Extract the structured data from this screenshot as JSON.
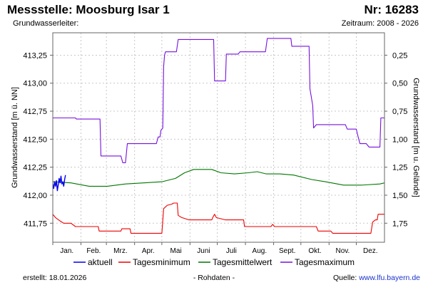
{
  "header": {
    "title": "Messstelle: Moosburg Isar 1",
    "nr": "Nr: 16283",
    "aquifer_label": "Grundwasserleiter:",
    "period": "Zeitraum: 2008 - 2026"
  },
  "footer": {
    "created": "erstellt:  18.01.2026",
    "rawdata": "- Rohdaten -",
    "source_label": "Quelle: ",
    "source_link": "www.lfu.bayern.de"
  },
  "colors": {
    "aktuell": "#0000ee",
    "min": "#ee0000",
    "mean": "#007700",
    "max": "#7711dd",
    "grid": "#c8c8c8"
  },
  "chart_data": {
    "type": "line",
    "ylabel_left": "Grundwasserstand [m ü. NN]",
    "ylabel_right": "Grundwasserstand [m u. Gelände]",
    "ylim": [
      411.58,
      413.45
    ],
    "yticks_left": [
      {
        "value": 411.75,
        "label": "411,75"
      },
      {
        "value": 412.0,
        "label": "412,00"
      },
      {
        "value": 412.25,
        "label": "412,25"
      },
      {
        "value": 412.5,
        "label": "412,50"
      },
      {
        "value": 412.75,
        "label": "412,75"
      },
      {
        "value": 413.0,
        "label": "413,00"
      },
      {
        "value": 413.25,
        "label": "413,25"
      }
    ],
    "yticks_right": [
      {
        "value": 413.25,
        "label": "0,25"
      },
      {
        "value": 413.0,
        "label": "0,50"
      },
      {
        "value": 412.75,
        "label": "0,75"
      },
      {
        "value": 412.5,
        "label": "1,00"
      },
      {
        "value": 412.25,
        "label": "1,25"
      },
      {
        "value": 412.0,
        "label": "1,50"
      },
      {
        "value": 411.75,
        "label": "1,75"
      }
    ],
    "xlim": [
      0,
      365
    ],
    "months": [
      {
        "label": "Jan.",
        "start": 0
      },
      {
        "label": "Feb.",
        "start": 31
      },
      {
        "label": "Mrz.",
        "start": 59
      },
      {
        "label": "Apr.",
        "start": 90
      },
      {
        "label": "Mai",
        "start": 120
      },
      {
        "label": "Juni",
        "start": 151
      },
      {
        "label": "Juli",
        "start": 181
      },
      {
        "label": "Aug.",
        "start": 212
      },
      {
        "label": "Sept.",
        "start": 243
      },
      {
        "label": "Okt.",
        "start": 273
      },
      {
        "label": "Nov.",
        "start": 304
      },
      {
        "label": "Dez.",
        "start": 334
      }
    ],
    "series": [
      {
        "name": "Tagesmaximum",
        "color": "#7711dd",
        "points": [
          [
            0,
            412.69
          ],
          [
            25,
            412.69
          ],
          [
            26,
            412.68
          ],
          [
            52,
            412.68
          ],
          [
            53,
            412.35
          ],
          [
            75,
            412.35
          ],
          [
            77,
            412.29
          ],
          [
            80,
            412.29
          ],
          [
            82,
            412.46
          ],
          [
            114,
            412.46
          ],
          [
            116,
            412.52
          ],
          [
            118,
            412.52
          ],
          [
            119,
            412.58
          ],
          [
            121,
            412.6
          ],
          [
            122,
            413.15
          ],
          [
            123,
            413.25
          ],
          [
            124,
            413.28
          ],
          [
            136,
            413.28
          ],
          [
            138,
            413.39
          ],
          [
            177,
            413.39
          ],
          [
            178,
            413.02
          ],
          [
            190,
            413.02
          ],
          [
            191,
            413.26
          ],
          [
            204,
            413.26
          ],
          [
            206,
            413.28
          ],
          [
            234,
            413.28
          ],
          [
            236,
            413.4
          ],
          [
            262,
            413.4
          ],
          [
            263,
            413.33
          ],
          [
            282,
            413.33
          ],
          [
            283,
            412.95
          ],
          [
            286,
            412.8
          ],
          [
            287,
            412.6
          ],
          [
            290,
            412.63
          ],
          [
            322,
            412.63
          ],
          [
            324,
            412.59
          ],
          [
            334,
            412.59
          ],
          [
            336,
            412.52
          ],
          [
            338,
            412.46
          ],
          [
            345,
            412.46
          ],
          [
            348,
            412.43
          ],
          [
            360,
            412.43
          ],
          [
            361,
            412.69
          ],
          [
            370,
            412.69
          ]
        ]
      },
      {
        "name": "Tagesmittelwert",
        "color": "#007700",
        "points": [
          [
            0,
            412.12
          ],
          [
            20,
            412.11
          ],
          [
            40,
            412.08
          ],
          [
            60,
            412.08
          ],
          [
            80,
            412.1
          ],
          [
            100,
            412.11
          ],
          [
            120,
            412.12
          ],
          [
            135,
            412.15
          ],
          [
            145,
            412.2
          ],
          [
            155,
            412.23
          ],
          [
            175,
            412.23
          ],
          [
            185,
            412.2
          ],
          [
            200,
            412.19
          ],
          [
            215,
            412.2
          ],
          [
            225,
            412.21
          ],
          [
            235,
            412.19
          ],
          [
            250,
            412.19
          ],
          [
            265,
            412.18
          ],
          [
            285,
            412.14
          ],
          [
            300,
            412.12
          ],
          [
            320,
            412.09
          ],
          [
            340,
            412.09
          ],
          [
            360,
            412.1
          ],
          [
            370,
            412.12
          ]
        ]
      },
      {
        "name": "Tagesminimum",
        "color": "#ee0000",
        "points": [
          [
            0,
            411.83
          ],
          [
            3,
            411.8
          ],
          [
            8,
            411.77
          ],
          [
            12,
            411.75
          ],
          [
            20,
            411.75
          ],
          [
            25,
            411.72
          ],
          [
            50,
            411.72
          ],
          [
            51,
            411.68
          ],
          [
            75,
            411.68
          ],
          [
            76,
            411.7
          ],
          [
            85,
            411.7
          ],
          [
            86,
            411.66
          ],
          [
            120,
            411.66
          ],
          [
            122,
            411.88
          ],
          [
            126,
            411.91
          ],
          [
            131,
            411.92
          ],
          [
            133,
            411.93
          ],
          [
            137,
            411.93
          ],
          [
            138,
            411.82
          ],
          [
            142,
            411.8
          ],
          [
            150,
            411.78
          ],
          [
            175,
            411.78
          ],
          [
            176,
            411.8
          ],
          [
            178,
            411.83
          ],
          [
            180,
            411.8
          ],
          [
            190,
            411.78
          ],
          [
            210,
            411.78
          ],
          [
            211,
            411.72
          ],
          [
            240,
            411.72
          ],
          [
            242,
            411.74
          ],
          [
            244,
            411.72
          ],
          [
            290,
            411.72
          ],
          [
            292,
            411.68
          ],
          [
            306,
            411.68
          ],
          [
            308,
            411.66
          ],
          [
            350,
            411.66
          ],
          [
            352,
            411.76
          ],
          [
            355,
            411.78
          ],
          [
            357,
            411.78
          ],
          [
            358,
            411.83
          ],
          [
            370,
            411.83
          ]
        ]
      },
      {
        "name": "aktuell",
        "color": "#0000ee",
        "points": [
          [
            0,
            412.1
          ],
          [
            1,
            412.06
          ],
          [
            2,
            412.12
          ],
          [
            3,
            412.08
          ],
          [
            4,
            412.13
          ],
          [
            5,
            412.04
          ],
          [
            6,
            412.09
          ],
          [
            7,
            412.15
          ],
          [
            8,
            412.11
          ],
          [
            9,
            412.17
          ],
          [
            10,
            412.1
          ],
          [
            11,
            412.12
          ],
          [
            12,
            412.08
          ],
          [
            13,
            412.14
          ],
          [
            14,
            412.18
          ]
        ]
      }
    ]
  }
}
